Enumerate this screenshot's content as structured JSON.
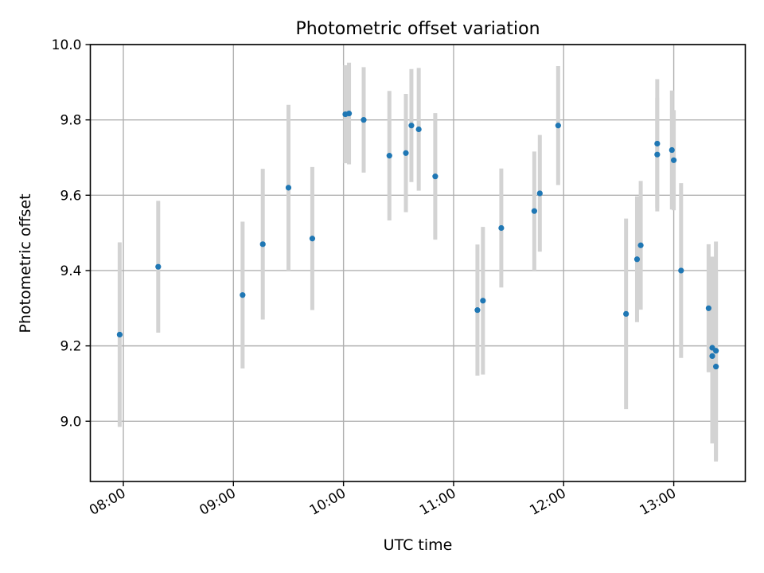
{
  "chart_data": {
    "type": "scatter",
    "title": "Photometric offset variation",
    "xlabel": "UTC time",
    "ylabel": "Photometric offset",
    "grid": true,
    "xlim": [
      "07:42",
      "13:39"
    ],
    "ylim": [
      8.84,
      10.0
    ],
    "xticks": [
      "08:00",
      "09:00",
      "10:00",
      "11:00",
      "12:00",
      "13:00"
    ],
    "yticks": [
      "9.0",
      "9.2",
      "9.4",
      "9.6",
      "9.8",
      "10.0"
    ],
    "colors": {
      "points": "#1f77b4",
      "errorbars": "#d3d3d3",
      "grid": "#b0b0b0"
    },
    "points": [
      {
        "x": "07:58",
        "y": 9.23,
        "err": 0.245
      },
      {
        "x": "08:19",
        "y": 9.41,
        "err": 0.175
      },
      {
        "x": "09:05",
        "y": 9.335,
        "err": 0.195
      },
      {
        "x": "09:16",
        "y": 9.47,
        "err": 0.2
      },
      {
        "x": "09:30",
        "y": 9.62,
        "err": 0.22
      },
      {
        "x": "09:43",
        "y": 9.485,
        "err": 0.19
      },
      {
        "x": "10:01",
        "y": 9.815,
        "err": 0.13
      },
      {
        "x": "10:03",
        "y": 9.817,
        "err": 0.135
      },
      {
        "x": "10:11",
        "y": 9.8,
        "err": 0.14
      },
      {
        "x": "10:25",
        "y": 9.705,
        "err": 0.172
      },
      {
        "x": "10:34",
        "y": 9.712,
        "err": 0.157
      },
      {
        "x": "10:37",
        "y": 9.785,
        "err": 0.15
      },
      {
        "x": "10:41",
        "y": 9.775,
        "err": 0.163
      },
      {
        "x": "10:50",
        "y": 9.65,
        "err": 0.168
      },
      {
        "x": "11:13",
        "y": 9.295,
        "err": 0.174
      },
      {
        "x": "11:16",
        "y": 9.32,
        "err": 0.196
      },
      {
        "x": "11:26",
        "y": 9.513,
        "err": 0.158
      },
      {
        "x": "11:44",
        "y": 9.558,
        "err": 0.158
      },
      {
        "x": "11:47",
        "y": 9.605,
        "err": 0.155
      },
      {
        "x": "11:57",
        "y": 9.785,
        "err": 0.158
      },
      {
        "x": "12:34",
        "y": 9.285,
        "err": 0.253
      },
      {
        "x": "12:40",
        "y": 9.43,
        "err": 0.167
      },
      {
        "x": "12:42",
        "y": 9.467,
        "err": 0.171
      },
      {
        "x": "12:51",
        "y": 9.708,
        "err": 0.151
      },
      {
        "x": "12:51",
        "y": 9.737,
        "err": 0.171
      },
      {
        "x": "12:59",
        "y": 9.72,
        "err": 0.158
      },
      {
        "x": "13:00",
        "y": 9.693,
        "err": 0.133
      },
      {
        "x": "13:04",
        "y": 9.4,
        "err": 0.232
      },
      {
        "x": "13:19",
        "y": 9.3,
        "err": 0.17
      },
      {
        "x": "13:21",
        "y": 9.195,
        "err": 0.242
      },
      {
        "x": "13:21",
        "y": 9.173,
        "err": 0.232
      },
      {
        "x": "13:23",
        "y": 9.187,
        "err": 0.29
      },
      {
        "x": "13:23",
        "y": 9.145,
        "err": 0.252
      }
    ]
  }
}
